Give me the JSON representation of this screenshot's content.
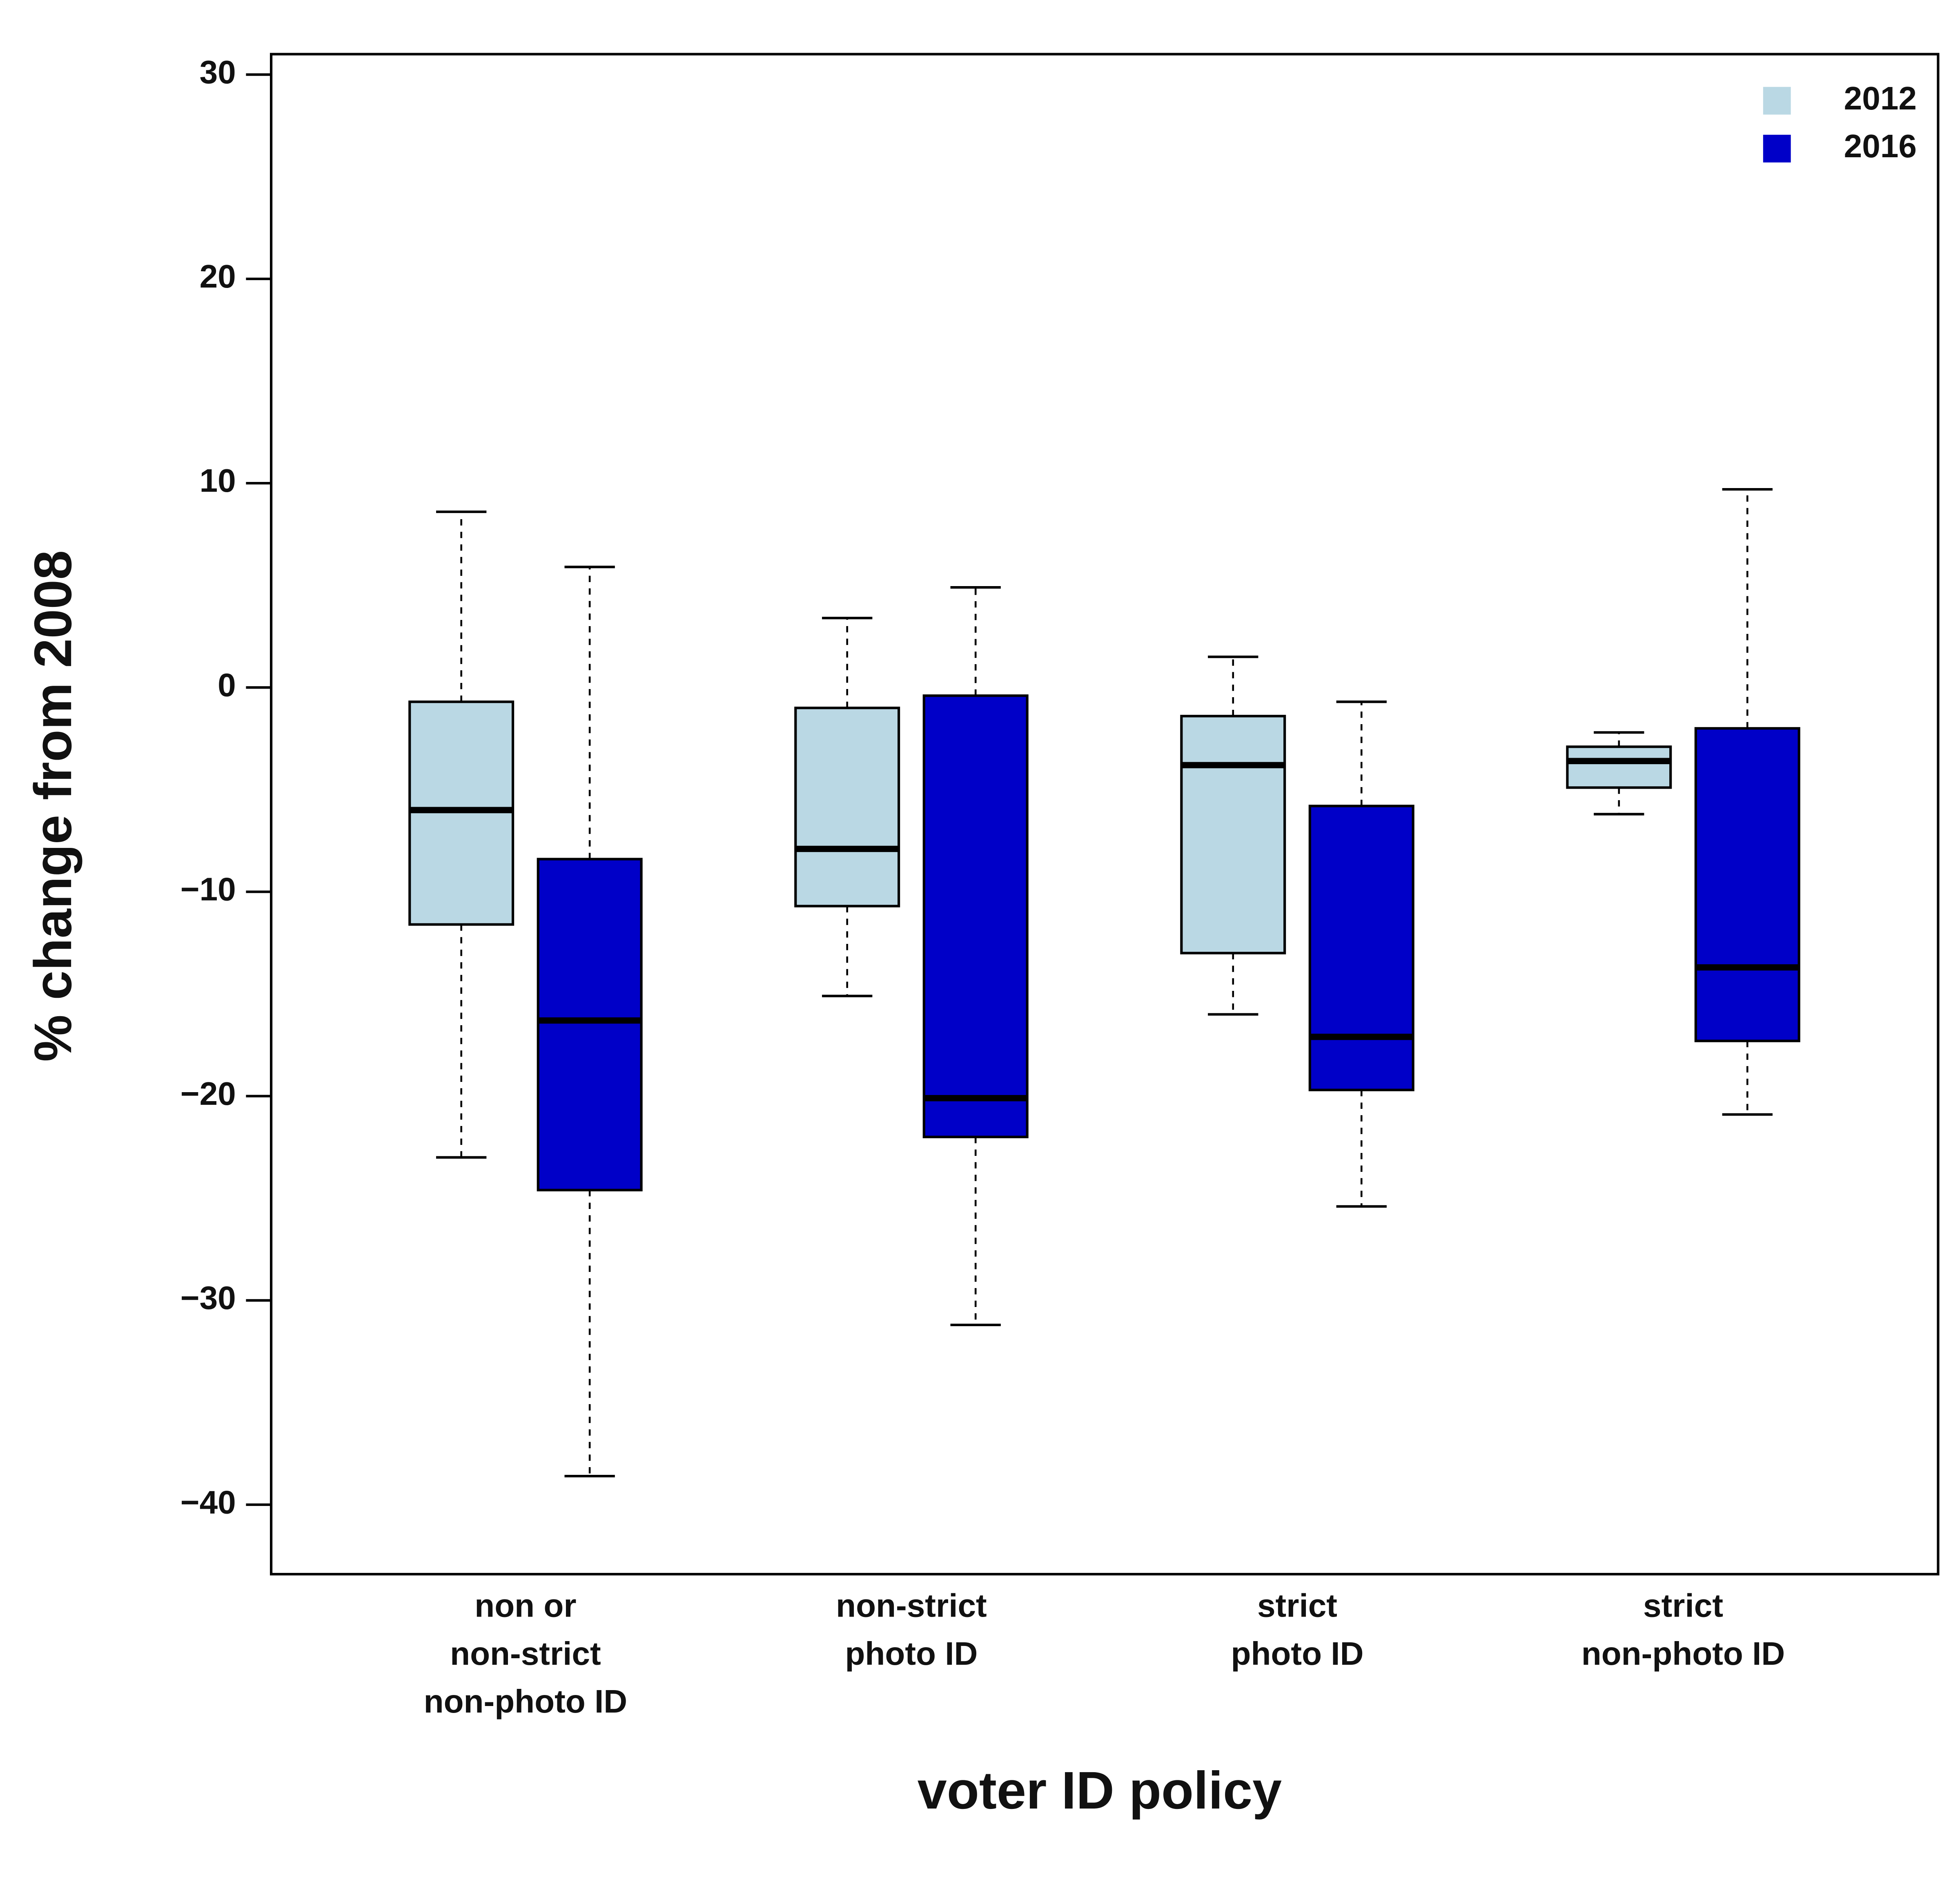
{
  "chart_data": {
    "type": "box",
    "x_label": "voter ID policy",
    "y_label": "% change from 2008",
    "categories": [
      [
        "non or",
        "non-strict",
        "non-photo ID"
      ],
      [
        "non-strict",
        "photo ID"
      ],
      [
        "strict",
        "photo ID"
      ],
      [
        "strict",
        "non-photo ID"
      ]
    ],
    "series": [
      {
        "name": "2012",
        "color": "#bad8e4",
        "max": [
          8.6,
          3.4,
          1.5,
          -2.2
        ],
        "q3": [
          -0.7,
          -1.0,
          -1.4,
          -2.9
        ],
        "median": [
          -6.0,
          -7.9,
          -3.8,
          -3.6
        ],
        "q1": [
          -11.6,
          -10.7,
          -13.0,
          -4.9
        ],
        "min": [
          -23.0,
          -15.1,
          -16.0,
          -6.2
        ]
      },
      {
        "name": "2016",
        "color": "#0000c8",
        "max": [
          5.9,
          4.9,
          -0.7,
          9.7
        ],
        "q3": [
          -8.4,
          -0.4,
          -5.8,
          -2.0
        ],
        "median": [
          -16.3,
          -20.1,
          -17.1,
          -13.7
        ],
        "q1": [
          -24.6,
          -22.0,
          -19.7,
          -17.3
        ],
        "min": [
          -38.6,
          -31.2,
          -25.4,
          -20.9
        ]
      }
    ],
    "ylim": [
      -43.4,
      31.0
    ],
    "yticks": [
      {
        "value": -40,
        "label": "−40"
      },
      {
        "value": -30,
        "label": "−30"
      },
      {
        "value": -20,
        "label": "−20"
      },
      {
        "value": -10,
        "label": "−10"
      },
      0,
      10,
      20,
      30
    ],
    "legend": "top-right"
  }
}
